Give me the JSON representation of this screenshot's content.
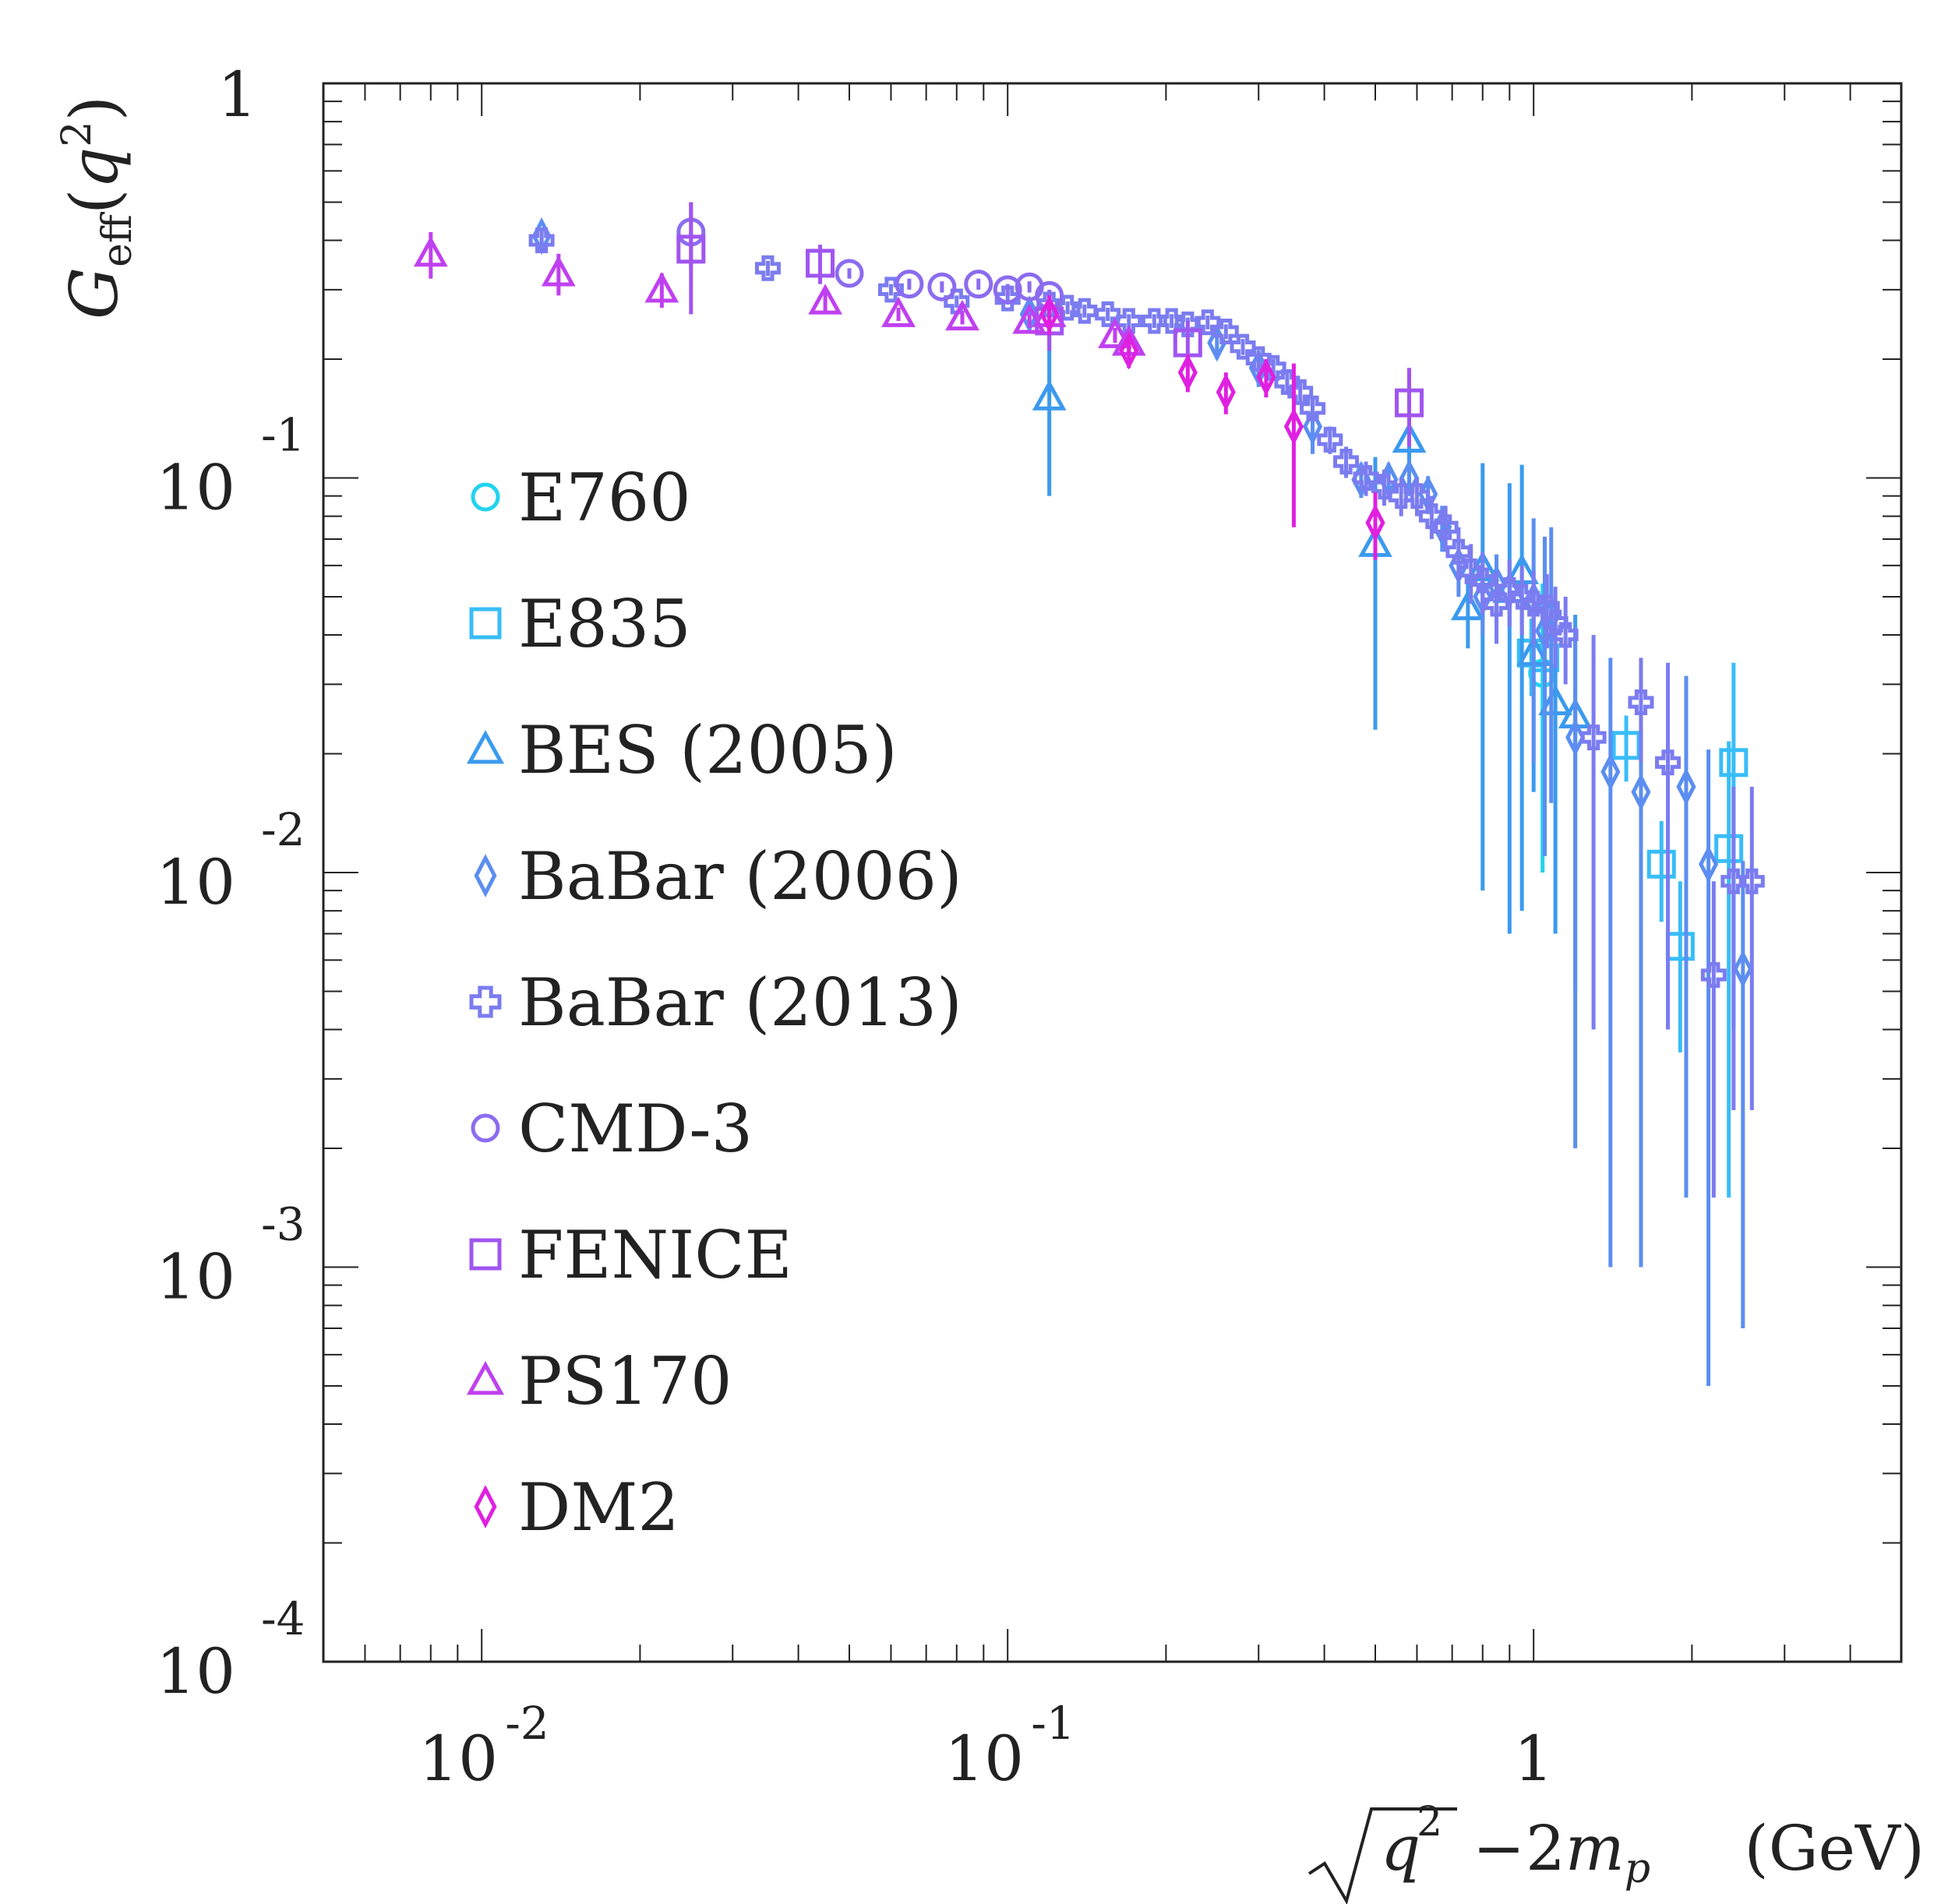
{
  "chart_data": {
    "type": "scatter",
    "title": "",
    "xlabel": "(GeV)",
    "ylabel": "",
    "x_scale": "log",
    "y_scale": "log",
    "xlim": [
      0.005,
      5.0
    ],
    "ylim": [
      0.0001,
      1.0
    ],
    "x_ticks": [
      {
        "value": 0.01,
        "base": "10",
        "exp": "-2"
      },
      {
        "value": 0.1,
        "base": "10",
        "exp": "-1"
      },
      {
        "value": 1.0,
        "base": "1",
        "exp": ""
      }
    ],
    "y_ticks": [
      {
        "value": 1.0,
        "base": "1",
        "exp": ""
      },
      {
        "value": 0.1,
        "base": "10",
        "exp": "-1"
      },
      {
        "value": 0.01,
        "base": "10",
        "exp": "-2"
      },
      {
        "value": 0.001,
        "base": "10",
        "exp": "-3"
      },
      {
        "value": 0.0001,
        "base": "10",
        "exp": "-4"
      }
    ],
    "legend_position": "left",
    "series": [
      {
        "name": "E760",
        "marker": "circle",
        "color": "#22d3ee",
        "points": [
          [
            1.04,
            0.032,
            0.022
          ]
        ]
      },
      {
        "name": "E835",
        "marker": "square",
        "color": "#38bdf8",
        "points": [
          [
            0.99,
            0.036,
            0.008
          ],
          [
            1.05,
            0.035,
            0.006
          ],
          [
            1.5,
            0.021,
            0.004
          ],
          [
            1.75,
            0.0105,
            0.003
          ],
          [
            1.9,
            0.0065,
            0.003
          ],
          [
            2.35,
            0.0115,
            0.01
          ],
          [
            2.4,
            0.019,
            0.015
          ]
        ]
      },
      {
        "name": "BES (2005)",
        "marker": "triangle",
        "color": "#3b9aee",
        "points": [
          [
            0.12,
            0.16,
            0.07
          ],
          [
            0.5,
            0.068,
            0.045
          ],
          [
            0.58,
            0.125,
            0.03
          ],
          [
            0.75,
            0.047,
            0.01
          ],
          [
            0.8,
            0.059,
            0.05
          ],
          [
            0.9,
            0.052,
            0.045
          ],
          [
            0.95,
            0.058,
            0.05
          ],
          [
            1.0,
            0.036,
            0.02
          ],
          [
            1.1,
            0.027,
            0.02
          ],
          [
            1.2,
            0.025,
            0.02
          ]
        ]
      },
      {
        "name": "BaBar (2006)",
        "marker": "diamond",
        "color": "#5b8ef0",
        "points": [
          [
            0.013,
            0.41,
            0.02
          ],
          [
            0.11,
            0.26,
            0.02
          ],
          [
            0.25,
            0.22,
            0.02
          ],
          [
            0.3,
            0.19,
            0.02
          ],
          [
            0.38,
            0.135,
            0.02
          ],
          [
            0.47,
            0.099,
            0.01
          ],
          [
            0.53,
            0.099,
            0.01
          ],
          [
            0.58,
            0.1,
            0.01
          ],
          [
            0.63,
            0.091,
            0.01
          ],
          [
            0.67,
            0.075,
            0.01
          ],
          [
            0.72,
            0.06,
            0.01
          ],
          [
            0.8,
            0.05,
            0.01
          ],
          [
            0.85,
            0.054,
            0.01
          ],
          [
            0.9,
            0.052,
            0.01
          ],
          [
            1.0,
            0.049,
            0.03
          ],
          [
            1.05,
            0.041,
            0.03
          ],
          [
            1.08,
            0.045,
            0.03
          ],
          [
            1.2,
            0.022,
            0.02
          ],
          [
            1.4,
            0.018,
            0.017
          ],
          [
            1.6,
            0.016,
            0.015
          ],
          [
            1.95,
            0.0165,
            0.015
          ],
          [
            2.15,
            0.0105,
            0.01
          ],
          [
            2.5,
            0.0057,
            0.005
          ]
        ]
      },
      {
        "name": "BaBar (2013)",
        "marker": "cross",
        "color": "#7b7cf0",
        "points": [
          [
            0.013,
            0.4,
            0.02
          ],
          [
            0.035,
            0.34,
            0.015
          ],
          [
            0.06,
            0.3,
            0.01
          ],
          [
            0.08,
            0.28,
            0.01
          ],
          [
            0.1,
            0.285,
            0.01
          ],
          [
            0.12,
            0.275,
            0.01
          ],
          [
            0.13,
            0.27,
            0.01
          ],
          [
            0.14,
            0.265,
            0.01
          ],
          [
            0.155,
            0.26,
            0.01
          ],
          [
            0.17,
            0.25,
            0.01
          ],
          [
            0.19,
            0.25,
            0.01
          ],
          [
            0.205,
            0.25,
            0.01
          ],
          [
            0.22,
            0.245,
            0.01
          ],
          [
            0.24,
            0.248,
            0.01
          ],
          [
            0.26,
            0.235,
            0.01
          ],
          [
            0.28,
            0.215,
            0.01
          ],
          [
            0.3,
            0.2,
            0.01
          ],
          [
            0.32,
            0.19,
            0.01
          ],
          [
            0.34,
            0.175,
            0.01
          ],
          [
            0.36,
            0.165,
            0.01
          ],
          [
            0.38,
            0.15,
            0.01
          ],
          [
            0.41,
            0.125,
            0.01
          ],
          [
            0.44,
            0.11,
            0.01
          ],
          [
            0.48,
            0.1,
            0.01
          ],
          [
            0.52,
            0.095,
            0.01
          ],
          [
            0.56,
            0.09,
            0.01
          ],
          [
            0.6,
            0.09,
            0.01
          ],
          [
            0.64,
            0.08,
            0.01
          ],
          [
            0.68,
            0.075,
            0.01
          ],
          [
            0.72,
            0.065,
            0.01
          ],
          [
            0.76,
            0.058,
            0.01
          ],
          [
            0.8,
            0.055,
            0.01
          ],
          [
            0.85,
            0.048,
            0.01
          ],
          [
            0.9,
            0.052,
            0.01
          ],
          [
            0.95,
            0.05,
            0.01
          ],
          [
            1.0,
            0.048,
            0.01
          ],
          [
            1.06,
            0.047,
            0.01
          ],
          [
            1.1,
            0.043,
            0.01
          ],
          [
            1.15,
            0.04,
            0.01
          ],
          [
            1.3,
            0.022,
            0.018
          ],
          [
            1.6,
            0.027,
            0.008
          ],
          [
            1.8,
            0.019,
            0.015
          ],
          [
            2.2,
            0.0055,
            0.004
          ],
          [
            2.4,
            0.0095,
            0.007
          ],
          [
            2.6,
            0.0095,
            0.007
          ]
        ]
      },
      {
        "name": "CMD-3",
        "marker": "circle",
        "color": "#8b6cf0",
        "points": [
          [
            0.025,
            0.42,
            0.08
          ],
          [
            0.05,
            0.33,
            0.01
          ],
          [
            0.065,
            0.31,
            0.01
          ],
          [
            0.075,
            0.305,
            0.01
          ],
          [
            0.088,
            0.31,
            0.01
          ],
          [
            0.1,
            0.3,
            0.01
          ],
          [
            0.11,
            0.305,
            0.01
          ],
          [
            0.12,
            0.29,
            0.01
          ]
        ]
      },
      {
        "name": "FENICE",
        "marker": "square",
        "color": "#a055f0",
        "points": [
          [
            0.025,
            0.38,
            0.12
          ],
          [
            0.044,
            0.35,
            0.04
          ],
          [
            0.12,
            0.25,
            0.04
          ],
          [
            0.22,
            0.22,
            0.03
          ],
          [
            0.58,
            0.155,
            0.035
          ]
        ]
      },
      {
        "name": "PS170",
        "marker": "triangle",
        "color": "#c040f0",
        "points": [
          [
            0.008,
            0.37,
            0.05
          ],
          [
            0.014,
            0.33,
            0.04
          ],
          [
            0.022,
            0.3,
            0.03
          ],
          [
            0.045,
            0.28,
            0.02
          ],
          [
            0.062,
            0.26,
            0.01
          ],
          [
            0.082,
            0.255,
            0.01
          ],
          [
            0.11,
            0.25,
            0.01
          ],
          [
            0.12,
            0.26,
            0.01
          ],
          [
            0.16,
            0.23,
            0.01
          ],
          [
            0.17,
            0.22,
            0.01
          ]
        ]
      },
      {
        "name": "DM2",
        "marker": "diamond",
        "color": "#e020e0",
        "points": [
          [
            0.12,
            0.26,
            0.03
          ],
          [
            0.17,
            0.21,
            0.02
          ],
          [
            0.22,
            0.185,
            0.02
          ],
          [
            0.26,
            0.165,
            0.02
          ],
          [
            0.31,
            0.18,
            0.02
          ],
          [
            0.35,
            0.135,
            0.06
          ],
          [
            0.5,
            0.077,
            0.015
          ]
        ]
      }
    ]
  }
}
